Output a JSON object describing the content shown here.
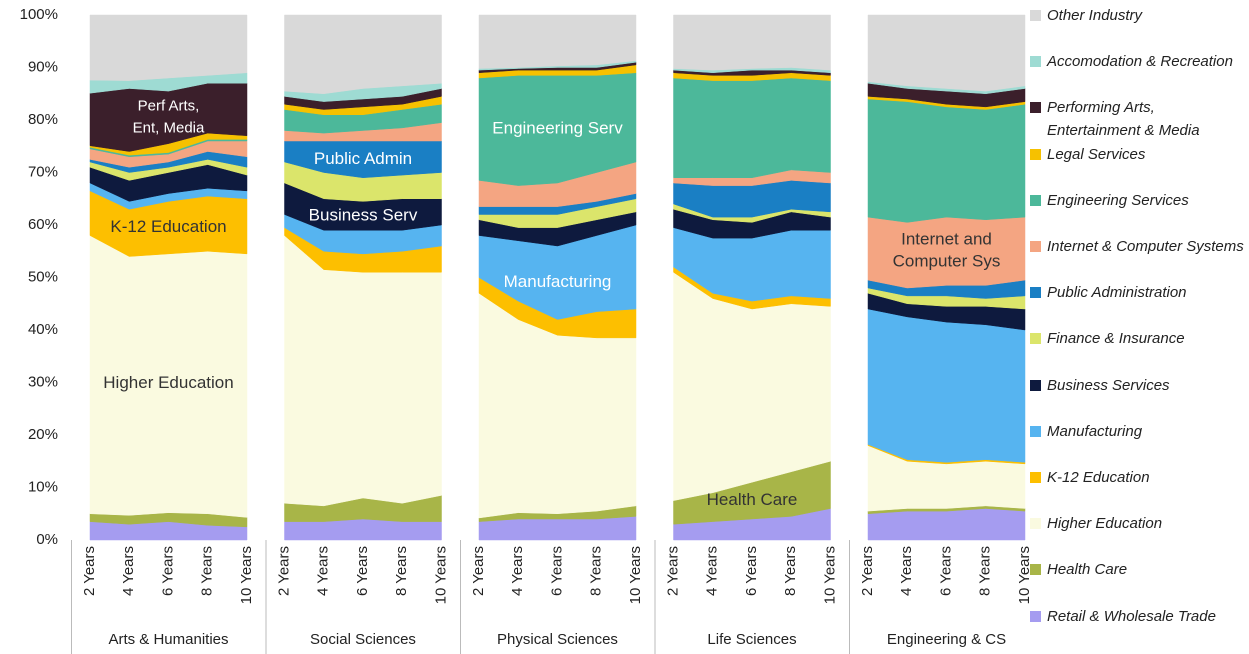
{
  "chart_data": {
    "type": "stacked-area",
    "ylim": [
      0,
      100
    ],
    "yticks": [
      {
        "value": 0,
        "label": "0%"
      },
      {
        "value": 10,
        "label": "10%"
      },
      {
        "value": 20,
        "label": "20%"
      },
      {
        "value": 30,
        "label": "30%"
      },
      {
        "value": 40,
        "label": "40%"
      },
      {
        "value": 50,
        "label": "50%"
      },
      {
        "value": 60,
        "label": "60%"
      },
      {
        "value": 70,
        "label": "70%"
      },
      {
        "value": 80,
        "label": "80%"
      },
      {
        "value": 90,
        "label": "90%"
      },
      {
        "value": 100,
        "label": "100%"
      }
    ],
    "categories": [
      "2 Years",
      "4 Years",
      "6 Years",
      "8 Years",
      "10 Years"
    ],
    "series": [
      {
        "name": "Retail & Wholesale Trade",
        "color": "#a59cf0"
      },
      {
        "name": "Health Care",
        "color": "#a8b548"
      },
      {
        "name": "Higher Education",
        "color": "#fafae0"
      },
      {
        "name": "K-12 Education",
        "color": "#fdbf00"
      },
      {
        "name": "Manufacturing",
        "color": "#56b4f0"
      },
      {
        "name": "Business Services",
        "color": "#0e1a3e"
      },
      {
        "name": "Finance & Insurance",
        "color": "#dbe56b"
      },
      {
        "name": "Public Administration",
        "color": "#1a7fc4"
      },
      {
        "name": "Internet & Computer Systems",
        "color": "#f4a582"
      },
      {
        "name": "Engineering Services",
        "color": "#4cb89a"
      },
      {
        "name": "Legal Services",
        "color": "#f6c100"
      },
      {
        "name": "Performing Arts, Entertainment & Media",
        "color": "#3b1f2b"
      },
      {
        "name": "Accomodation & Recreation",
        "color": "#9edbd3"
      },
      {
        "name": "Other Industry",
        "color": "#d9d9d9"
      }
    ],
    "panels": [
      {
        "name": "Arts & Humanities",
        "values": [
          [
            3.5,
            3,
            3.5,
            2.8,
            2.5
          ],
          [
            1.5,
            1.7,
            1.7,
            2.2,
            1.8
          ],
          [
            53,
            49.3,
            49.3,
            50,
            50.2
          ],
          [
            8.5,
            9,
            10,
            10.5,
            10.5
          ],
          [
            1.5,
            1.5,
            1.5,
            1.5,
            1.5
          ],
          [
            3,
            4,
            4,
            4.5,
            3
          ],
          [
            1,
            1.5,
            1,
            1,
            1.5
          ],
          [
            0.5,
            1,
            1,
            1.5,
            2
          ],
          [
            2,
            2,
            1.5,
            2,
            3
          ],
          [
            0.3,
            0.3,
            0.3,
            0.3,
            0.3
          ],
          [
            0.3,
            0.7,
            1.7,
            1.2,
            0.7
          ],
          [
            10,
            12,
            10,
            9.5,
            10
          ],
          [
            2.5,
            1.5,
            2.5,
            1.5,
            2
          ],
          [
            12.4,
            12.5,
            12,
            11.5,
            11
          ]
        ],
        "annotations": [
          {
            "lines": [
              "Perf Arts,",
              "Ent, Media"
            ],
            "series": 11,
            "color": "#ffffff"
          },
          {
            "lines": [
              "K-12 Education"
            ],
            "series": 3,
            "color": "#333333"
          },
          {
            "lines": [
              "Higher Education"
            ],
            "series": 2,
            "color": "#333333"
          }
        ]
      },
      {
        "name": "Social Sciences",
        "values": [
          [
            3.5,
            3.5,
            4,
            3.5,
            3.5
          ],
          [
            3.5,
            3,
            4,
            3.5,
            5
          ],
          [
            51,
            45,
            43,
            44,
            42.5
          ],
          [
            1.5,
            3.5,
            3.5,
            4,
            5
          ],
          [
            2.5,
            4,
            4.5,
            4,
            4
          ],
          [
            6,
            6,
            5.5,
            6,
            5
          ],
          [
            4,
            5,
            4.5,
            4.5,
            5
          ],
          [
            4,
            6,
            7,
            6.5,
            6
          ],
          [
            2,
            1.5,
            2,
            2.5,
            3.5
          ],
          [
            4,
            3.5,
            3,
            3.5,
            3.5
          ],
          [
            1,
            1,
            1.5,
            1,
            1.5
          ],
          [
            1.5,
            1.5,
            1.5,
            1.5,
            1.5
          ],
          [
            1,
            1.5,
            2,
            2,
            1
          ],
          [
            14.5,
            15,
            14,
            13.5,
            13
          ]
        ],
        "annotations": [
          {
            "lines": [
              "Public Admin"
            ],
            "series": 7,
            "color": "#ffffff"
          },
          {
            "lines": [
              "Business Serv"
            ],
            "series": 5,
            "color": "#ffffff"
          }
        ]
      },
      {
        "name": "Physical Sciences",
        "values": [
          [
            3.5,
            4,
            4,
            4,
            4.5
          ],
          [
            0.7,
            1.2,
            1,
            1.5,
            2
          ],
          [
            42.8,
            36.8,
            34,
            33,
            32
          ],
          [
            3,
            3.5,
            3,
            5,
            5.5
          ],
          [
            8,
            11.5,
            14,
            14.5,
            16
          ],
          [
            3,
            2.5,
            3.5,
            3,
            2.5
          ],
          [
            1,
            2.5,
            2.5,
            2.5,
            2.5
          ],
          [
            1.5,
            1.5,
            1.5,
            1,
            1
          ],
          [
            5,
            4,
            4.5,
            5.5,
            6
          ],
          [
            19.5,
            21,
            20.5,
            18.5,
            17
          ],
          [
            1,
            1,
            1,
            1,
            1.5
          ],
          [
            0.5,
            0.3,
            0.5,
            0.5,
            0.5
          ],
          [
            0.3,
            0.2,
            0.3,
            0.5,
            0.3
          ],
          [
            10.2,
            10,
            9.7,
            9.5,
            8.7
          ]
        ],
        "annotations": [
          {
            "lines": [
              "Engineering Serv"
            ],
            "series": 9,
            "color": "#ffffff"
          },
          {
            "lines": [
              "Manufacturing"
            ],
            "series": 4,
            "color": "#ffffff"
          }
        ]
      },
      {
        "name": "Life Sciences",
        "values": [
          [
            3,
            3.5,
            4,
            4.5,
            6
          ],
          [
            4.5,
            5.5,
            7,
            8.5,
            9
          ],
          [
            43.5,
            37,
            33,
            32,
            29.5
          ],
          [
            1,
            1,
            1.5,
            1.5,
            1.5
          ],
          [
            7.5,
            10.5,
            12,
            12.5,
            13
          ],
          [
            3.5,
            3.5,
            3,
            3.5,
            2.5
          ],
          [
            1,
            0.5,
            1,
            0.5,
            1
          ],
          [
            4,
            6,
            6,
            5.5,
            5.5
          ],
          [
            1,
            1.5,
            1.5,
            2,
            2
          ],
          [
            19,
            18.5,
            18.5,
            17.5,
            17.5
          ],
          [
            1,
            1,
            1,
            1,
            1
          ],
          [
            0.5,
            0.5,
            1,
            0.5,
            0.5
          ],
          [
            0.3,
            0.5,
            0.3,
            0.5,
            0.5
          ],
          [
            10.2,
            10.5,
            10.2,
            10,
            10.5
          ]
        ],
        "annotations": [
          {
            "lines": [
              "Health Care"
            ],
            "series": 1,
            "color": "#333333"
          }
        ]
      },
      {
        "name": "Engineering & CS",
        "values": [
          [
            5,
            5.5,
            5.5,
            6,
            5.5
          ],
          [
            0.5,
            0.5,
            0.5,
            0.5,
            0.5
          ],
          [
            12.5,
            9,
            8.5,
            8.5,
            8.5
          ],
          [
            0.2,
            0.3,
            0.3,
            0.3,
            0.3
          ],
          [
            25.8,
            27.2,
            26.7,
            25.7,
            25.2
          ],
          [
            3,
            2.5,
            3,
            3.5,
            4
          ],
          [
            1,
            1.5,
            2,
            1.5,
            2.5
          ],
          [
            1.5,
            1.5,
            2,
            2.5,
            3
          ],
          [
            12,
            12.5,
            13,
            12.5,
            12
          ],
          [
            22.5,
            23,
            21,
            21,
            21.5
          ],
          [
            0.5,
            0.5,
            0.5,
            0.5,
            0.5
          ],
          [
            2.5,
            2,
            2.5,
            2.5,
            2.5
          ],
          [
            0.3,
            0.5,
            0.5,
            0.5,
            0.5
          ],
          [
            12.7,
            13.5,
            14,
            14.5,
            13.5
          ]
        ],
        "annotations": [
          {
            "lines": [
              "Internet and",
              "Computer Sys"
            ],
            "series": 8,
            "color": "#333333"
          }
        ]
      }
    ]
  }
}
